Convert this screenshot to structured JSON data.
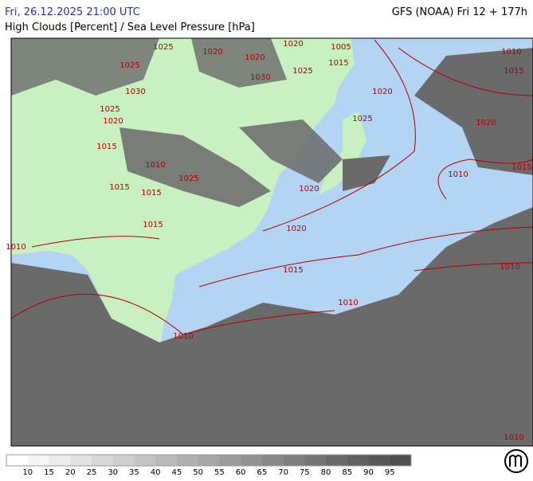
{
  "header": {
    "datetime": "Fri, 26.12.2025 21:00 UTC",
    "model": "GFS (NOAA) Fri 12 + 177h",
    "title": "High Clouds [Percent] / Sea Level Pressure [hPa]"
  },
  "isobar_labels": [
    1005,
    1015,
    1010,
    1015,
    1020,
    1025,
    1020,
    1010,
    1015,
    1020,
    1020,
    1015,
    1010,
    1010,
    1010,
    1010,
    1015,
    1015,
    1015,
    1010,
    1025,
    1015,
    1020,
    1025,
    1030,
    1025,
    1020,
    1020,
    1025,
    1030,
    1025,
    1020,
    1010
  ],
  "colorbar": {
    "ticks": [
      10,
      15,
      20,
      25,
      30,
      35,
      40,
      45,
      50,
      55,
      60,
      65,
      70,
      75,
      80,
      85,
      90,
      95
    ],
    "colors": [
      "#ffffff",
      "#f5f5f5",
      "#ececec",
      "#e2e2e2",
      "#d8d8d8",
      "#cecece",
      "#c4c4c4",
      "#bababa",
      "#b0b0b0",
      "#a6a6a6",
      "#9c9c9c",
      "#929292",
      "#888888",
      "#7e7e7e",
      "#747474",
      "#6a6a6a",
      "#606060",
      "#585858",
      "#505050"
    ]
  }
}
